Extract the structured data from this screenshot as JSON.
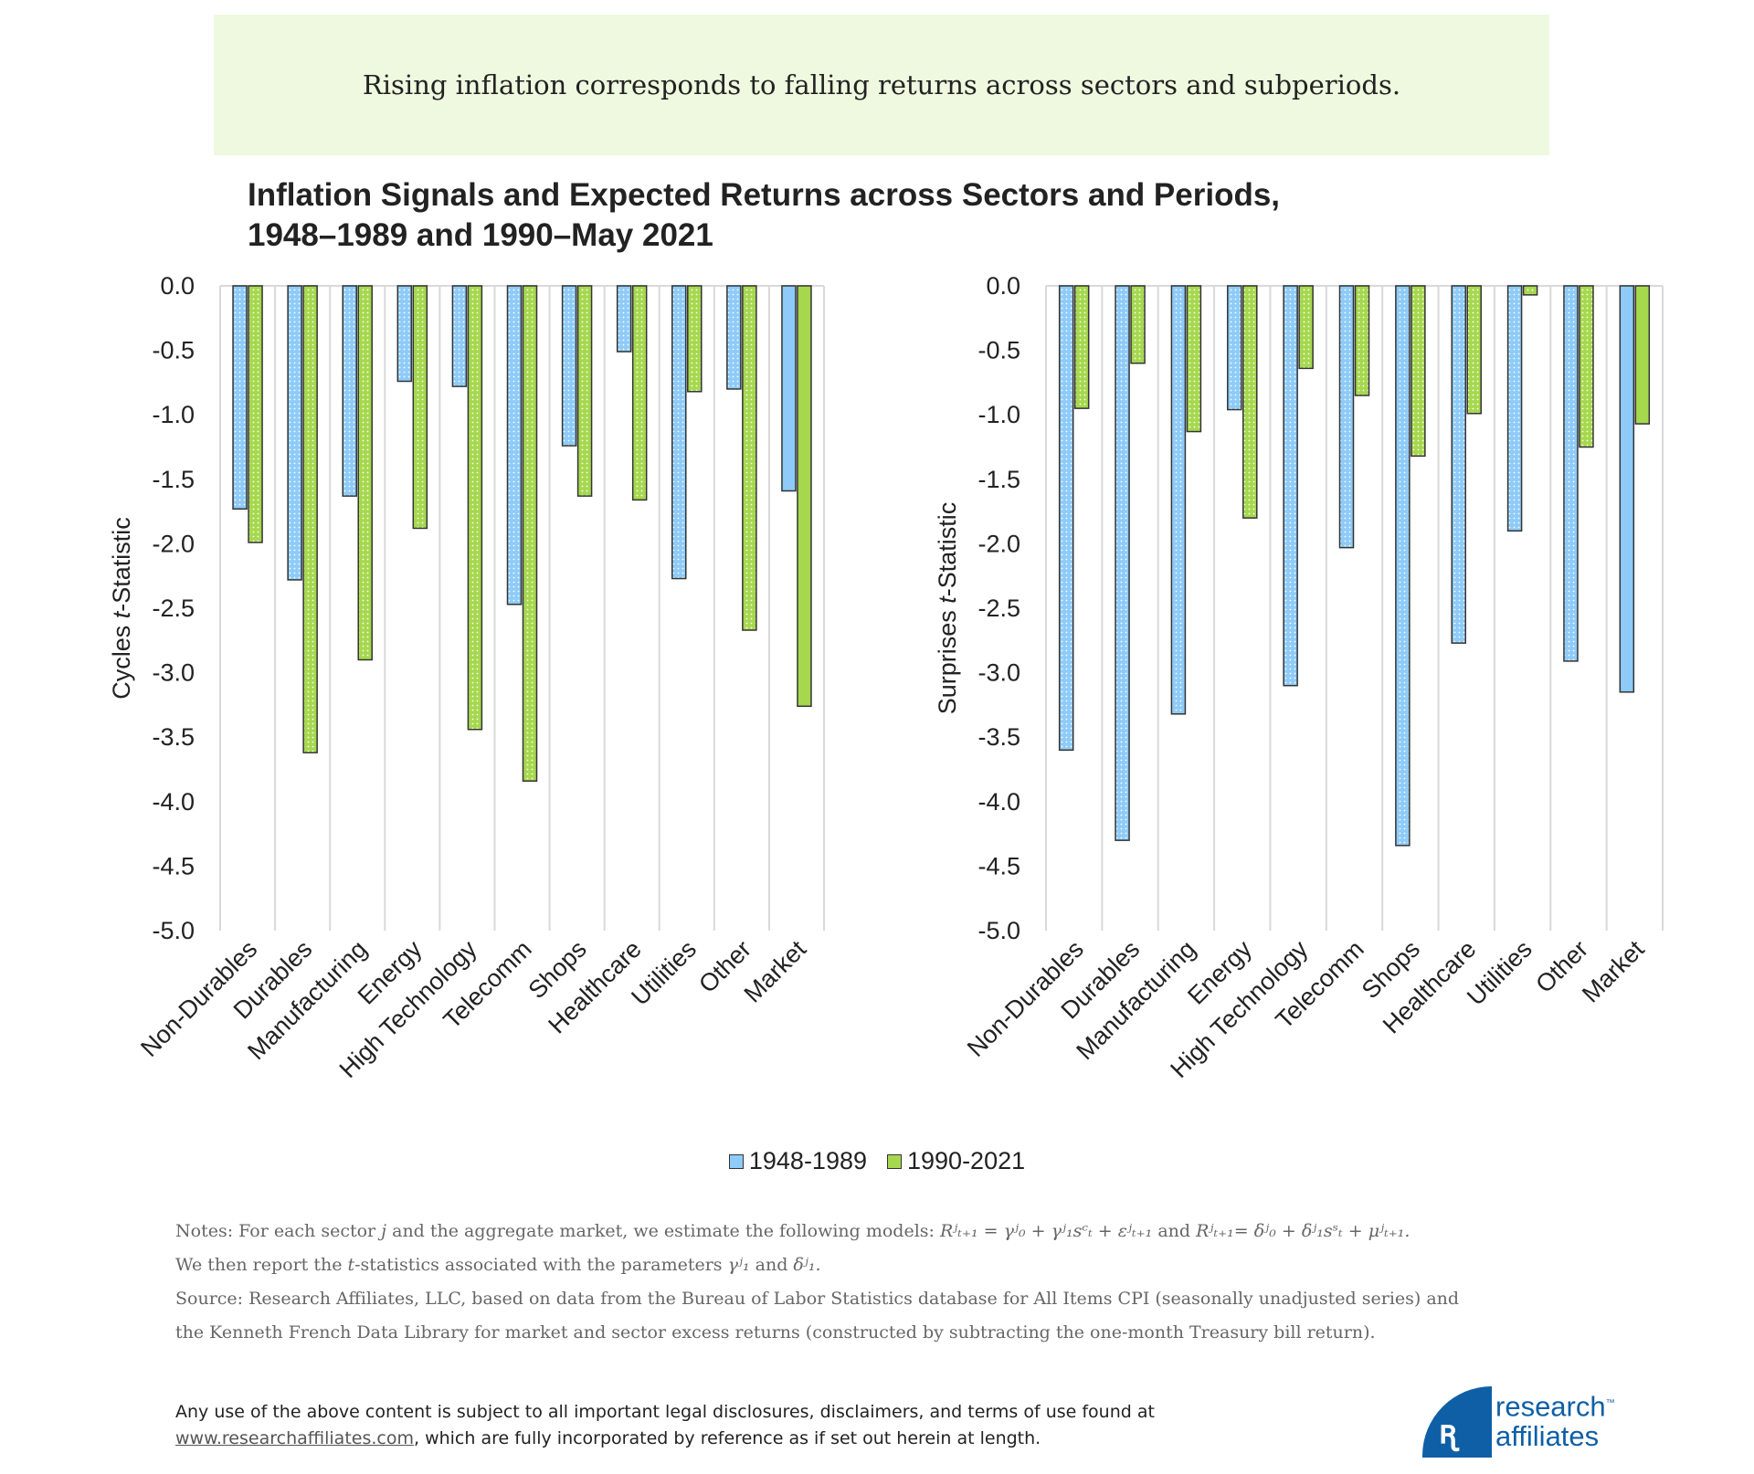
{
  "banner": {
    "headline": "Rising inflation corresponds to falling returns across sectors and subperiods."
  },
  "chart_title": {
    "line1": "Inflation Signals and Expected Returns across Sectors and Periods,",
    "line2": "1948–1989 and 1990–May 2021"
  },
  "colors": {
    "series1": "#8ecbf8",
    "series2": "#a6d84e",
    "bar_border": "#333333",
    "grid": "#d9d9d9"
  },
  "chart_data": [
    {
      "type": "bar",
      "ylabel": "Cycles t-Statistic",
      "ylim": [
        -5.0,
        0.0
      ],
      "yticks": [
        "0.0",
        "-0.5",
        "-1.0",
        "-1.5",
        "-2.0",
        "-2.5",
        "-3.0",
        "-3.5",
        "-4.0",
        "-4.5",
        "-5.0"
      ],
      "grid": "vertical category separators",
      "categories": [
        "Non-Durables",
        "Durables",
        "Manufacturing",
        "Energy",
        "High Technology",
        "Telecomm",
        "Shops",
        "Healthcare",
        "Utilities",
        "Other",
        "Market"
      ],
      "series": [
        {
          "name": "1948-1989",
          "values": [
            -1.73,
            -2.28,
            -1.63,
            -0.74,
            -0.78,
            -2.47,
            -1.24,
            -0.51,
            -2.27,
            -0.8,
            -1.59
          ]
        },
        {
          "name": "1990-2021",
          "values": [
            -1.99,
            -3.62,
            -2.9,
            -1.88,
            -3.44,
            -3.84,
            -1.63,
            -1.66,
            -0.82,
            -2.67,
            -3.26
          ]
        }
      ]
    },
    {
      "type": "bar",
      "ylabel": "Surprises t-Statistic",
      "ylim": [
        -5.0,
        0.0
      ],
      "yticks": [
        "0.0",
        "-0.5",
        "-1.0",
        "-1.5",
        "-2.0",
        "-2.5",
        "-3.0",
        "-3.5",
        "-4.0",
        "-4.5",
        "-5.0"
      ],
      "grid": "vertical category separators",
      "categories": [
        "Non-Durables",
        "Durables",
        "Manufacturing",
        "Energy",
        "High Technology",
        "Telecomm",
        "Shops",
        "Healthcare",
        "Utilities",
        "Other",
        "Market"
      ],
      "series": [
        {
          "name": "1948-1989",
          "values": [
            -3.6,
            -4.3,
            -3.32,
            -0.96,
            -3.1,
            -2.03,
            -4.34,
            -2.77,
            -1.9,
            -2.91,
            -3.15
          ]
        },
        {
          "name": "1990-2021",
          "values": [
            -0.95,
            -0.6,
            -1.13,
            -1.8,
            -0.64,
            -0.85,
            -1.32,
            -0.99,
            -0.07,
            -1.25,
            -1.07
          ]
        }
      ]
    }
  ],
  "legend": {
    "items": [
      "1948-1989",
      "1990-2021"
    ],
    "placement": "bottom"
  },
  "notes": {
    "line1_prefix": "Notes: For each sector ",
    "j": "j",
    "line1_mid": " and the aggregate market, we estimate the following models: ",
    "eq1": "Rʲₜ₊₁ = γʲ₀ + γʲ₁sᶜₜ + εʲₜ₊₁",
    "and": " and ",
    "eq2": "Rʲₜ₊₁= δʲ₀ + δʲ₁sˢₜ + μʲₜ₊₁.",
    "line2_prefix": "We then report the ",
    "t": "t",
    "line2_mid": "-statistics associated with the parameters ",
    "gamma": "γʲ₁",
    "delta": "δʲ₁.",
    "source1": "Source: Research Affiliates, LLC, based on data from the Bureau of Labor Statistics database for All Items CPI (seasonally unadjusted series) and",
    "source2": "the Kenneth French Data Library for market and sector excess returns (constructed by subtracting the one-month Treasury bill return)."
  },
  "disclaimer": {
    "line1": "Any use of the above content is subject to all important legal disclosures, disclaimers, and terms of use found at",
    "link": "www.researchaffiliates.com",
    "line2_rest": ", which are fully incorporated by reference as if set out herein at length."
  },
  "logo": {
    "line1": "research",
    "line2": "affiliates",
    "tm": "™"
  }
}
